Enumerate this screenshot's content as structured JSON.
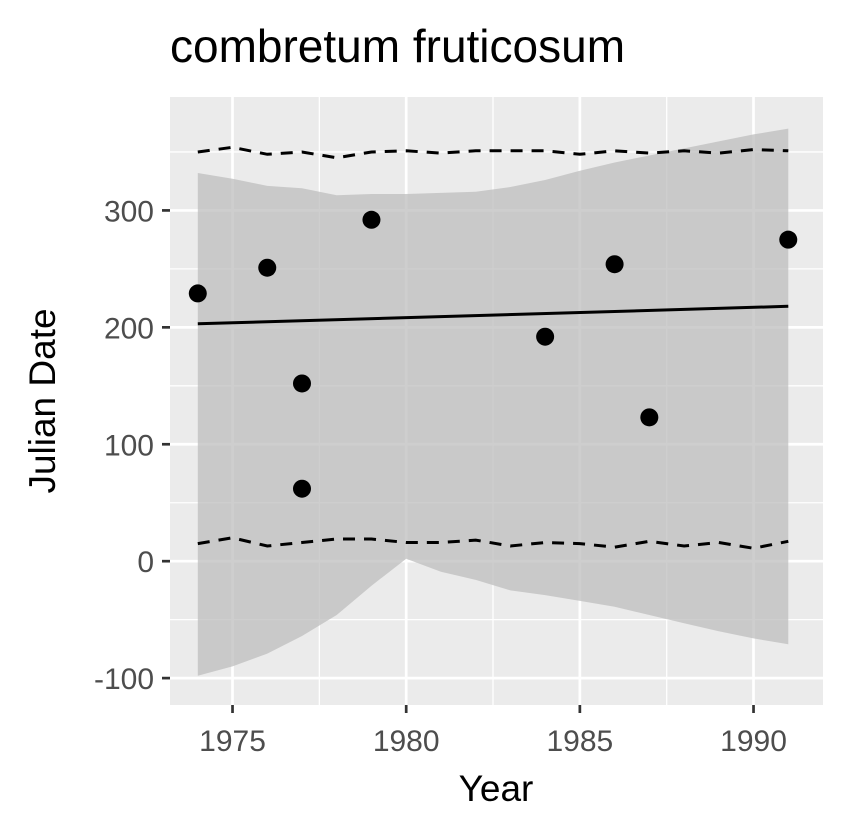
{
  "chart_data": {
    "type": "scatter",
    "title": "combretum fruticosum",
    "xlabel": "Year",
    "ylabel": "Julian Date",
    "xlim": [
      1973.2,
      1992.0
    ],
    "ylim": [
      -123,
      397
    ],
    "x_ticks": [
      1975,
      1980,
      1985,
      1990
    ],
    "y_ticks": [
      -100,
      0,
      100,
      200,
      300
    ],
    "x_tick_labels": [
      "1975",
      "1980",
      "1985",
      "1990"
    ],
    "y_tick_labels": [
      "-100",
      "0",
      "100",
      "200",
      "300"
    ],
    "grid": true,
    "legend": "none",
    "colors": {
      "panel_background": "#ebebeb",
      "grid": "#ffffff",
      "ribbon": "#bdbdbd",
      "points": "#000000",
      "lines": "#000000"
    },
    "points": [
      {
        "x": 1974,
        "y": 229
      },
      {
        "x": 1976,
        "y": 251
      },
      {
        "x": 1977,
        "y": 152
      },
      {
        "x": 1977,
        "y": 62
      },
      {
        "x": 1979,
        "y": 292
      },
      {
        "x": 1984,
        "y": 192
      },
      {
        "x": 1986,
        "y": 254
      },
      {
        "x": 1987,
        "y": 123
      },
      {
        "x": 1991,
        "y": 275
      }
    ],
    "fit_line": {
      "x": [
        1974,
        1991
      ],
      "y": [
        203,
        218
      ]
    },
    "confidence_band": {
      "x": [
        1974,
        1975,
        1976,
        1977,
        1978,
        1979,
        1980,
        1981,
        1982,
        1983,
        1984,
        1985,
        1986,
        1987,
        1988,
        1989,
        1990,
        1991
      ],
      "upper": [
        332,
        327,
        321,
        319,
        313,
        314,
        314,
        315,
        316,
        320,
        326,
        334,
        341,
        347,
        353,
        359,
        365,
        370
      ],
      "lower": [
        -98,
        -90,
        -79,
        -64,
        -46,
        -21,
        2,
        -9,
        -16,
        -25,
        -29,
        -34,
        -39,
        -46,
        -53,
        -60,
        -66,
        -71
      ]
    },
    "upper_dashed": {
      "x": [
        1974,
        1975,
        1976,
        1977,
        1978,
        1979,
        1980,
        1981,
        1982,
        1983,
        1984,
        1985,
        1986,
        1987,
        1988,
        1989,
        1990,
        1991
      ],
      "y": [
        350,
        354,
        348,
        350,
        345,
        350,
        351,
        349,
        351,
        351,
        351,
        348,
        351,
        349,
        351,
        349,
        352,
        351
      ]
    },
    "lower_dashed": {
      "x": [
        1974,
        1975,
        1976,
        1977,
        1978,
        1979,
        1980,
        1981,
        1982,
        1983,
        1984,
        1985,
        1986,
        1987,
        1988,
        1989,
        1990,
        1991
      ],
      "y": [
        15,
        20,
        13,
        16,
        19,
        19,
        16,
        16,
        18,
        13,
        16,
        15,
        12,
        17,
        13,
        16,
        11,
        17
      ]
    }
  }
}
